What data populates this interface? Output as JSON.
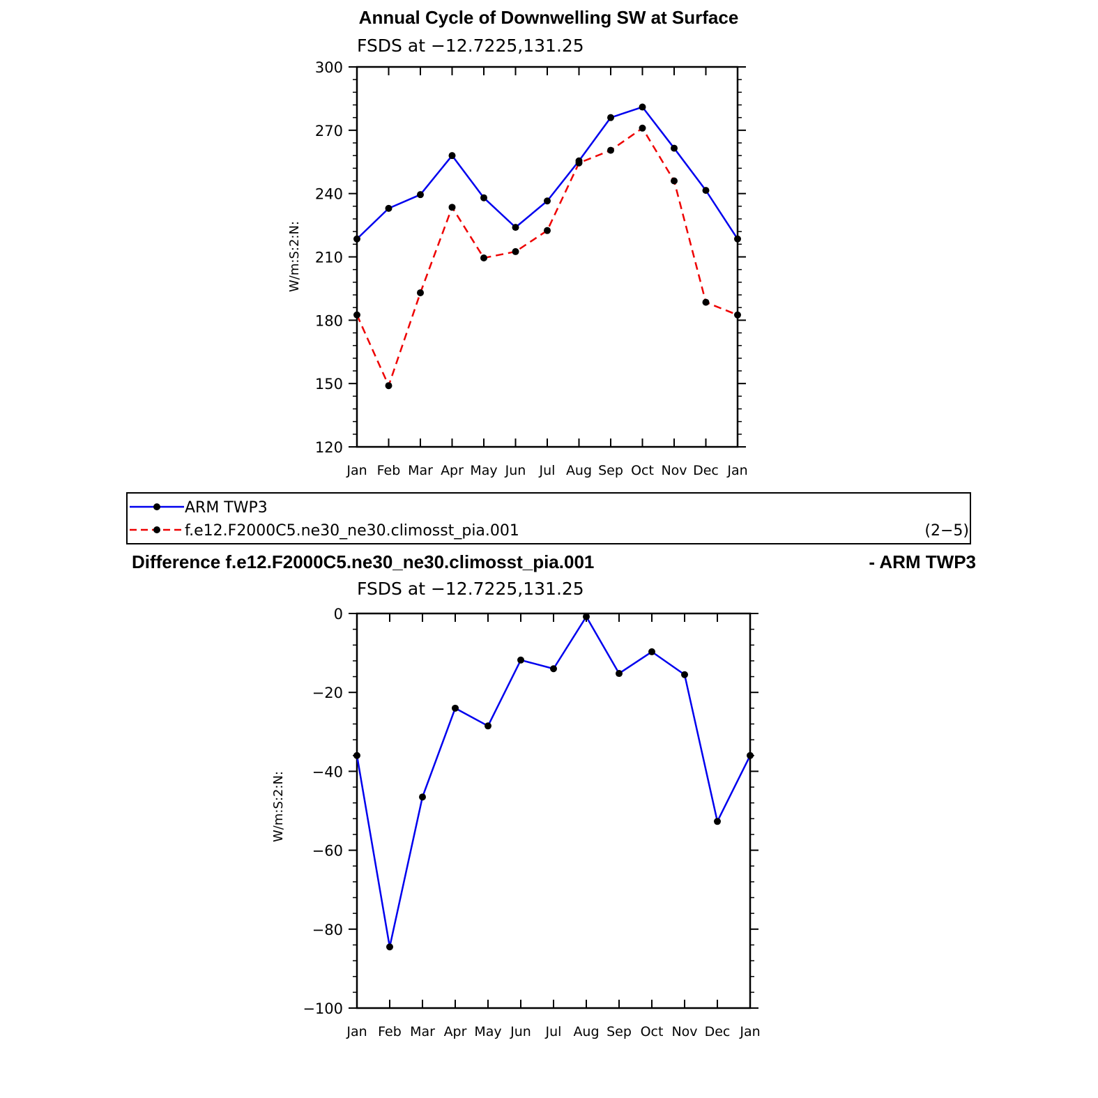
{
  "figure": {
    "title": "Annual Cycle of Downwelling SW at Surface",
    "diff_title_left": "Difference f.e12.F2000C5.ne30_ne30.climosst_pia.001",
    "diff_title_right": "- ARM TWP3",
    "panel_id": "(2−5)"
  },
  "legend": {
    "items": [
      {
        "label": "ARM TWP3",
        "color": "#0000ee",
        "dashed": false
      },
      {
        "label": "f.e12.F2000C5.ne30_ne30.climosst_pia.001",
        "color": "#ee0000",
        "dashed": true
      }
    ]
  },
  "chart_data": [
    {
      "type": "line",
      "title": "FSDS at −12.7225,131.25",
      "ylabel": "W/m:S:2:N:",
      "xlabel": "",
      "categories": [
        "Jan",
        "Feb",
        "Mar",
        "Apr",
        "May",
        "Jun",
        "Jul",
        "Aug",
        "Sep",
        "Oct",
        "Nov",
        "Dec",
        "Jan"
      ],
      "ylim": [
        120,
        300
      ],
      "yticks": [
        120,
        150,
        180,
        210,
        240,
        270,
        300
      ],
      "yticks_labels": [
        "120",
        "150",
        "180",
        "210",
        "240",
        "270",
        "300"
      ],
      "grid": false,
      "series": [
        {
          "name": "ARM TWP3",
          "color": "#0000ee",
          "dashed": false,
          "values": [
            218.5,
            233,
            239.5,
            258,
            238,
            224,
            236.5,
            255.5,
            276,
            281,
            261.5,
            241.5,
            218.5
          ]
        },
        {
          "name": "f.e12.F2000C5.ne30_ne30.climosst_pia.001",
          "color": "#ee0000",
          "dashed": true,
          "values": [
            182.5,
            149,
            193,
            233.5,
            209.5,
            212.5,
            222.5,
            254.5,
            260.5,
            271,
            246,
            188.5,
            182.5
          ]
        }
      ]
    },
    {
      "type": "line",
      "title": "FSDS at −12.7225,131.25",
      "ylabel": "W/m:S:2:N:",
      "xlabel": "",
      "categories": [
        "Jan",
        "Feb",
        "Mar",
        "Apr",
        "May",
        "Jun",
        "Jul",
        "Aug",
        "Sep",
        "Oct",
        "Nov",
        "Dec",
        "Jan"
      ],
      "ylim": [
        -100,
        0
      ],
      "yticks": [
        -100,
        -80,
        -60,
        -40,
        -20,
        0
      ],
      "yticks_labels": [
        "−100",
        "−80",
        "−60",
        "−40",
        "−20",
        "0"
      ],
      "grid": false,
      "series": [
        {
          "color": "#0000ee",
          "dashed": false,
          "values": [
            -36,
            -84.5,
            -46.5,
            -24,
            -28.5,
            -11.8,
            -14,
            -0.8,
            -15.2,
            -9.7,
            -15.5,
            -52.7,
            -36
          ]
        }
      ]
    }
  ]
}
